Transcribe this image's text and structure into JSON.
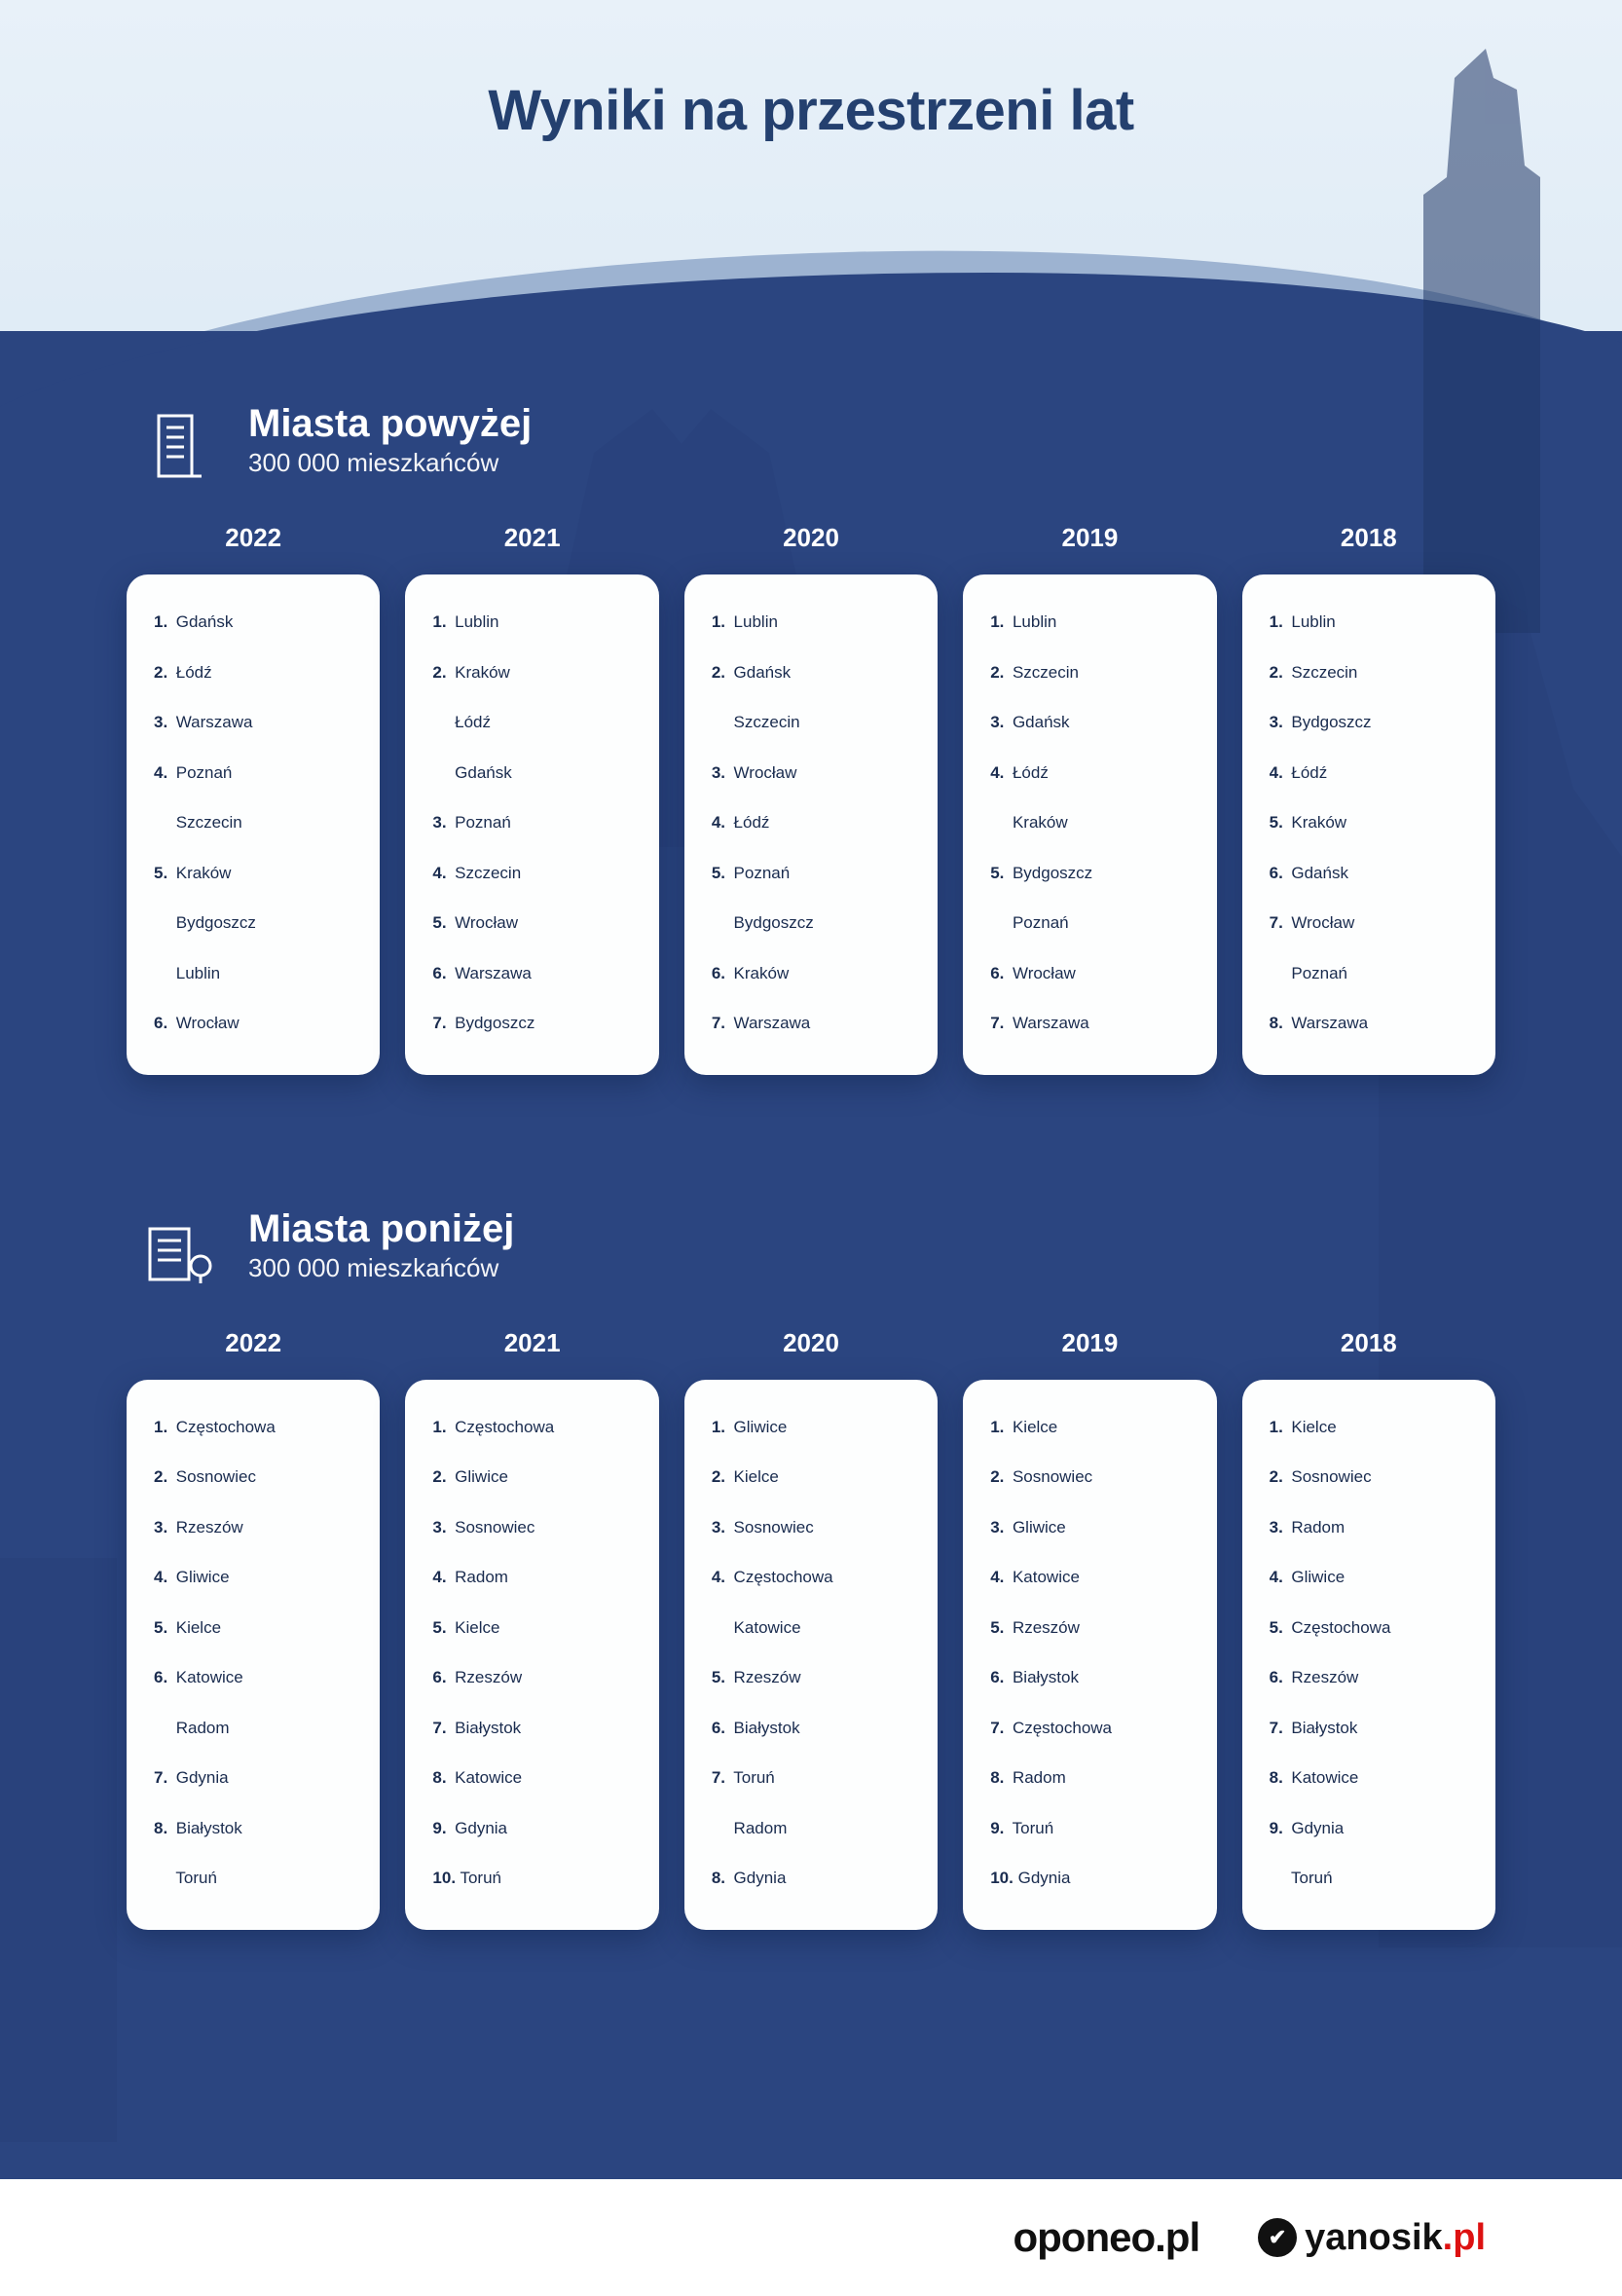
{
  "title": "Wyniki na przestrzeni lat",
  "colors": {
    "sky": "#e8f1f9",
    "wave_light": "#9db3d1",
    "main_bg": "#2b4580",
    "title_color": "#24406f",
    "card_bg": "#fdfefe",
    "text_color": "#1a2c4f",
    "footer_bg": "#ffffff"
  },
  "sections": [
    {
      "title": "Miasta powyżej",
      "subtitle": "300 000 mieszkańców",
      "icon": "building-tall",
      "years": [
        {
          "year": "2022",
          "rows": [
            {
              "rank": "1.",
              "name": "Gdańsk"
            },
            {
              "rank": "2.",
              "name": "Łódź"
            },
            {
              "rank": "3.",
              "name": "Warszawa"
            },
            {
              "rank": "4.",
              "name": "Poznań"
            },
            {
              "rank": "",
              "name": "Szczecin"
            },
            {
              "rank": "5.",
              "name": "Kraków"
            },
            {
              "rank": "",
              "name": "Bydgoszcz"
            },
            {
              "rank": "",
              "name": "Lublin"
            },
            {
              "rank": "6.",
              "name": "Wrocław"
            }
          ]
        },
        {
          "year": "2021",
          "rows": [
            {
              "rank": "1.",
              "name": "Lublin"
            },
            {
              "rank": "2.",
              "name": "Kraków"
            },
            {
              "rank": "",
              "name": "Łódź"
            },
            {
              "rank": "",
              "name": "Gdańsk"
            },
            {
              "rank": "3.",
              "name": "Poznań"
            },
            {
              "rank": "4.",
              "name": "Szczecin"
            },
            {
              "rank": "5.",
              "name": "Wrocław"
            },
            {
              "rank": "6.",
              "name": "Warszawa"
            },
            {
              "rank": "7.",
              "name": "Bydgoszcz"
            }
          ]
        },
        {
          "year": "2020",
          "rows": [
            {
              "rank": "1.",
              "name": "Lublin"
            },
            {
              "rank": "2.",
              "name": "Gdańsk"
            },
            {
              "rank": "",
              "name": "Szczecin"
            },
            {
              "rank": "3.",
              "name": "Wrocław"
            },
            {
              "rank": "4.",
              "name": "Łódź"
            },
            {
              "rank": "5.",
              "name": "Poznań"
            },
            {
              "rank": "",
              "name": "Bydgoszcz"
            },
            {
              "rank": "6.",
              "name": "Kraków"
            },
            {
              "rank": "7.",
              "name": "Warszawa"
            }
          ]
        },
        {
          "year": "2019",
          "rows": [
            {
              "rank": "1.",
              "name": "Lublin"
            },
            {
              "rank": "2.",
              "name": "Szczecin"
            },
            {
              "rank": "3.",
              "name": "Gdańsk"
            },
            {
              "rank": "4.",
              "name": "Łódź"
            },
            {
              "rank": "",
              "name": "Kraków"
            },
            {
              "rank": "5.",
              "name": "Bydgoszcz"
            },
            {
              "rank": "",
              "name": "Poznań"
            },
            {
              "rank": "6.",
              "name": "Wrocław"
            },
            {
              "rank": "7.",
              "name": "Warszawa"
            }
          ]
        },
        {
          "year": "2018",
          "rows": [
            {
              "rank": "1.",
              "name": "Lublin"
            },
            {
              "rank": "2.",
              "name": "Szczecin"
            },
            {
              "rank": "3.",
              "name": "Bydgoszcz"
            },
            {
              "rank": "4.",
              "name": "Łódź"
            },
            {
              "rank": "5.",
              "name": "Kraków"
            },
            {
              "rank": "6.",
              "name": "Gdańsk"
            },
            {
              "rank": "7.",
              "name": "Wrocław"
            },
            {
              "rank": "",
              "name": "Poznań"
            },
            {
              "rank": "8.",
              "name": "Warszawa"
            }
          ]
        }
      ]
    },
    {
      "title": "Miasta poniżej",
      "subtitle": "300 000 mieszkańców",
      "icon": "building-small",
      "years": [
        {
          "year": "2022",
          "rows": [
            {
              "rank": "1.",
              "name": "Częstochowa"
            },
            {
              "rank": "2.",
              "name": "Sosnowiec"
            },
            {
              "rank": "3.",
              "name": "Rzeszów"
            },
            {
              "rank": "4.",
              "name": "Gliwice"
            },
            {
              "rank": "5.",
              "name": "Kielce"
            },
            {
              "rank": "6.",
              "name": "Katowice"
            },
            {
              "rank": "",
              "name": "Radom"
            },
            {
              "rank": "7.",
              "name": "Gdynia"
            },
            {
              "rank": "8.",
              "name": "Białystok"
            },
            {
              "rank": "",
              "name": "Toruń"
            }
          ]
        },
        {
          "year": "2021",
          "rows": [
            {
              "rank": "1.",
              "name": "Częstochowa"
            },
            {
              "rank": "2.",
              "name": "Gliwice"
            },
            {
              "rank": "3.",
              "name": "Sosnowiec"
            },
            {
              "rank": "4.",
              "name": "Radom"
            },
            {
              "rank": "5.",
              "name": "Kielce"
            },
            {
              "rank": "6.",
              "name": "Rzeszów"
            },
            {
              "rank": "7.",
              "name": "Białystok"
            },
            {
              "rank": "8.",
              "name": "Katowice"
            },
            {
              "rank": "9.",
              "name": "Gdynia"
            },
            {
              "rank": "10.",
              "name": "Toruń"
            }
          ]
        },
        {
          "year": "2020",
          "rows": [
            {
              "rank": "1.",
              "name": "Gliwice"
            },
            {
              "rank": "2.",
              "name": "Kielce"
            },
            {
              "rank": "3.",
              "name": "Sosnowiec"
            },
            {
              "rank": "4.",
              "name": "Częstochowa"
            },
            {
              "rank": "",
              "name": "Katowice"
            },
            {
              "rank": "5.",
              "name": "Rzeszów"
            },
            {
              "rank": "6.",
              "name": "Białystok"
            },
            {
              "rank": "7.",
              "name": "Toruń"
            },
            {
              "rank": "",
              "name": "Radom"
            },
            {
              "rank": "8.",
              "name": "Gdynia"
            }
          ]
        },
        {
          "year": "2019",
          "rows": [
            {
              "rank": "1.",
              "name": "Kielce"
            },
            {
              "rank": "2.",
              "name": "Sosnowiec"
            },
            {
              "rank": "3.",
              "name": "Gliwice"
            },
            {
              "rank": "4.",
              "name": "Katowice"
            },
            {
              "rank": "5.",
              "name": "Rzeszów"
            },
            {
              "rank": "6.",
              "name": "Białystok"
            },
            {
              "rank": "7.",
              "name": "Częstochowa"
            },
            {
              "rank": "8.",
              "name": "Radom"
            },
            {
              "rank": "9.",
              "name": "Toruń"
            },
            {
              "rank": "10.",
              "name": "Gdynia"
            }
          ]
        },
        {
          "year": "2018",
          "rows": [
            {
              "rank": "1.",
              "name": "Kielce"
            },
            {
              "rank": "2.",
              "name": "Sosnowiec"
            },
            {
              "rank": "3.",
              "name": "Radom"
            },
            {
              "rank": "4.",
              "name": "Gliwice"
            },
            {
              "rank": "5.",
              "name": "Częstochowa"
            },
            {
              "rank": "6.",
              "name": "Rzeszów"
            },
            {
              "rank": "7.",
              "name": "Białystok"
            },
            {
              "rank": "8.",
              "name": "Katowice"
            },
            {
              "rank": "9.",
              "name": "Gdynia"
            },
            {
              "rank": "",
              "name": "Toruń"
            }
          ]
        }
      ]
    }
  ],
  "footer": {
    "logo1": "oponeo",
    "logo1_suffix": ".pl",
    "logo2": "yanosik",
    "logo2_suffix": ".pl"
  }
}
